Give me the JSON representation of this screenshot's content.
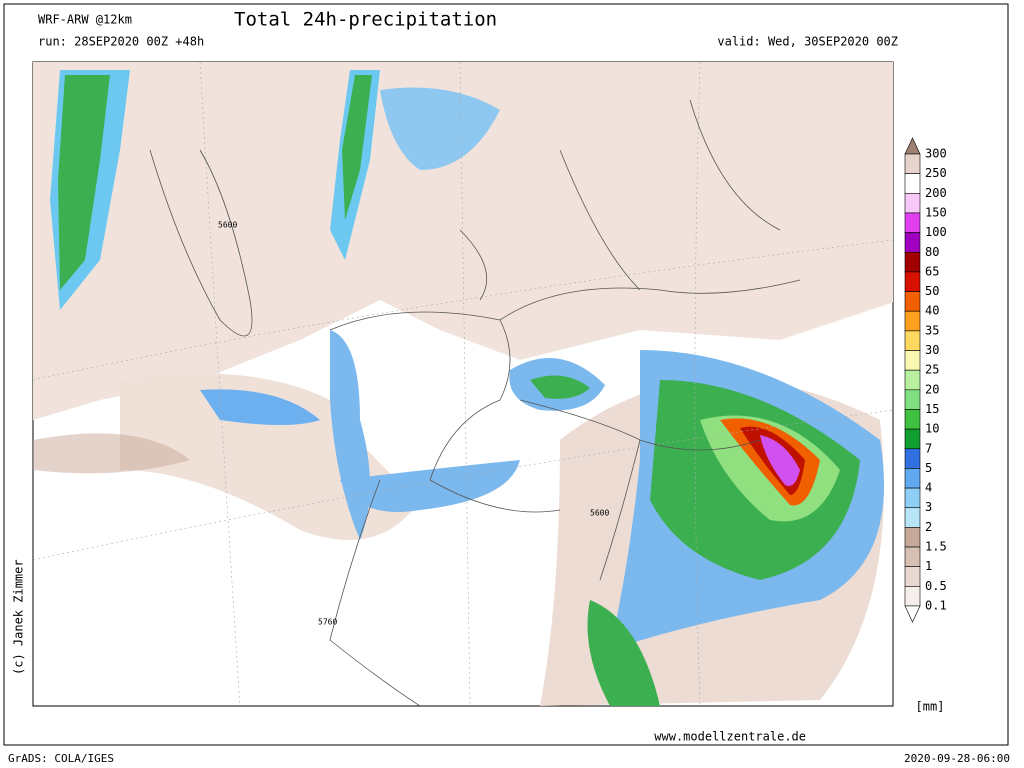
{
  "header": {
    "model": "WRF-ARW @12km",
    "title": "Total 24h-precipitation",
    "run": "run: 28SEP2020 00Z +48h",
    "valid": "valid: Wed, 30SEP2020 00Z"
  },
  "map": {
    "contour_labels": [
      "5600",
      "5600",
      "5760"
    ]
  },
  "legend": {
    "labels": [
      "300",
      "250",
      "200",
      "150",
      "100",
      "80",
      "65",
      "50",
      "40",
      "35",
      "30",
      "25",
      "20",
      "15",
      "10",
      "7",
      "5",
      "4",
      "3",
      "2",
      "1.5",
      "1",
      "0.5",
      "0.1"
    ],
    "colors": [
      "#a08070",
      "#e6d4cc",
      "#ffffff",
      "#f8c8f8",
      "#e040f0",
      "#a000c0",
      "#a00000",
      "#d81000",
      "#f06000",
      "#ffa020",
      "#ffd860",
      "#f8f8b0",
      "#b8f0a0",
      "#80e080",
      "#40c040",
      "#10a030",
      "#3070e0",
      "#60a8f0",
      "#90cff5",
      "#b8e4f8",
      "#c8a898",
      "#d8bfb3",
      "#e8d8d0",
      "#f5eeea",
      "#ffffff"
    ],
    "unit": "[mm]"
  },
  "footer": {
    "copyright": "(c) Janek Zimmer",
    "website": "www.modellzentrale.de",
    "software": "GrADS: COLA/IGES",
    "timestamp": "2020-09-28-06:00"
  }
}
